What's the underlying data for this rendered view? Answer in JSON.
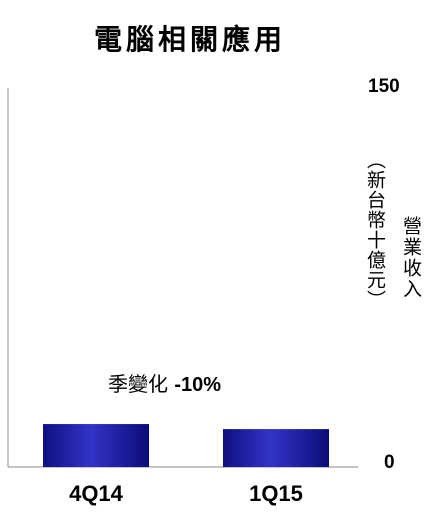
{
  "chart_data": {
    "type": "bar",
    "title": "電腦相關應用",
    "categories": [
      "4Q14",
      "1Q15"
    ],
    "values": [
      17,
      15
    ],
    "ylabel": "營業收入",
    "yunit": "（新台幣十億元）",
    "ylim": [
      0,
      150
    ],
    "yticks": [
      "0",
      "150"
    ],
    "annotation": {
      "label": "季變化",
      "value": "-10%"
    },
    "grid": false,
    "bar_color": "#1f1fa8"
  }
}
